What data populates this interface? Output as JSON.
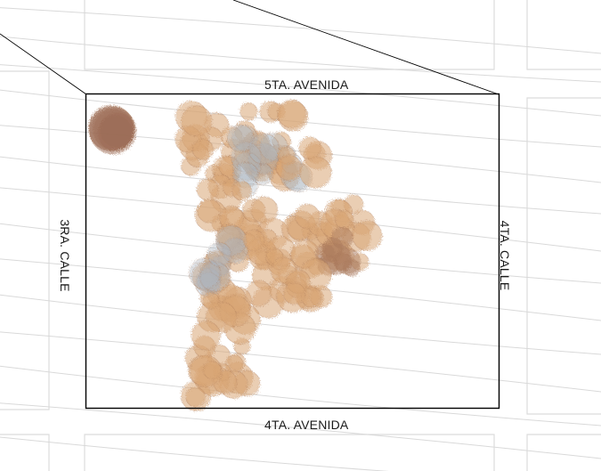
{
  "map": {
    "streets": {
      "top": "5TA. AVENIDA",
      "bottom": "4TA. AVENIDA",
      "left": "3RA. CALLE",
      "right": "4TA. CALLE"
    },
    "colors": {
      "block_outline": "#dcdcdc",
      "contour_lines": "#d9d9d9",
      "lot_boundary": "#000000",
      "canopy_main": "#d9a574",
      "canopy_dark": "#a8785a",
      "canopy_gray": "#aab4c0",
      "canopy_isolated": "#9c6b55"
    }
  }
}
